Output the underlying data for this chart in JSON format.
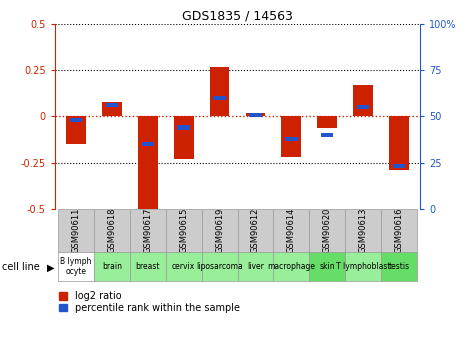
{
  "title": "GDS1835 / 14563",
  "samples": [
    "GSM90611",
    "GSM90618",
    "GSM90617",
    "GSM90615",
    "GSM90619",
    "GSM90612",
    "GSM90614",
    "GSM90620",
    "GSM90613",
    "GSM90616"
  ],
  "cell_lines": [
    "B lymph\nocyte",
    "brain",
    "breast",
    "cervix",
    "liposarcoma",
    "liver",
    "macrophage",
    "skin",
    "T lymphoblast",
    "testis"
  ],
  "cell_line_colors": [
    "#ffffff",
    "#99ee99",
    "#99ee99",
    "#99ee99",
    "#99ee99",
    "#99ee99",
    "#99ee99",
    "#66dd66",
    "#99ee99",
    "#66dd66"
  ],
  "log2_ratio": [
    -0.15,
    0.08,
    -0.52,
    -0.23,
    0.27,
    0.02,
    -0.22,
    -0.06,
    0.17,
    -0.29
  ],
  "percentile_rank": [
    48,
    56,
    35,
    44,
    60,
    51,
    38,
    40,
    55,
    23
  ],
  "ylim": [
    -0.5,
    0.5
  ],
  "yticks_left": [
    -0.5,
    -0.25,
    0,
    0.25,
    0.5
  ],
  "yticks_right": [
    0,
    25,
    50,
    75,
    100
  ],
  "bar_color_red": "#cc2200",
  "bar_color_blue": "#2255cc",
  "hline_color": "#cc2200",
  "dotline_color": "#000000",
  "bg_color": "#ffffff",
  "bar_width": 0.55,
  "blue_bar_width": 0.35
}
